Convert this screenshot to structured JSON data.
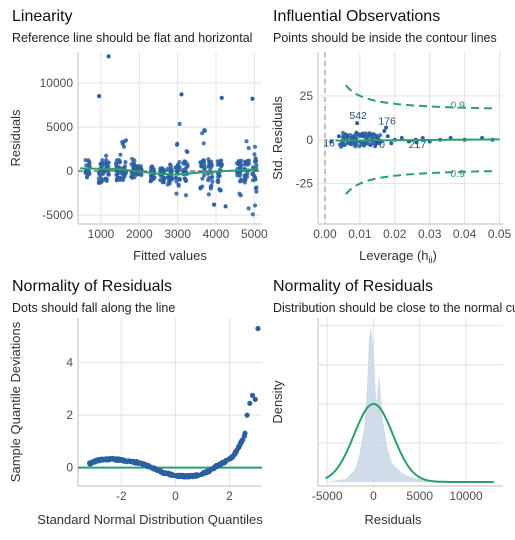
{
  "colors": {
    "points": "#2a5fa0",
    "line": "#2e9e6e",
    "grid": "#e3e3e3",
    "density_fill": "#c9d6e6",
    "ref_dash": "#9a9a9a"
  },
  "panels": [
    {
      "title": "Linearity",
      "subtitle": "Reference line should be flat and horizontal"
    },
    {
      "title": "Influential Observations",
      "subtitle": "Points should be inside the contour lines"
    },
    {
      "title": "Normality of Residuals",
      "subtitle": "Dots should fall along the line"
    },
    {
      "title": "Normality of Residuals",
      "subtitle": "Distribution should be close to the normal curve"
    }
  ],
  "chart_data": [
    {
      "type": "scatter",
      "title": "Linearity",
      "subtitle": "Reference line should be flat and horizontal",
      "xlabel": "Fitted values",
      "ylabel": "Residuals",
      "xlim": [
        400,
        5200
      ],
      "ylim": [
        -6000,
        13500
      ],
      "xticks": [
        1000,
        2000,
        3000,
        4000,
        5000
      ],
      "yticks": [
        -5000,
        0,
        5000,
        10000
      ],
      "grid": true,
      "reference_line": {
        "y": 0,
        "style": "dashed"
      },
      "clusters": [
        {
          "x": 650,
          "ymin": -800,
          "ymax": 1500
        },
        {
          "x": 1000,
          "ymin": -1500,
          "ymax": 4000
        },
        {
          "x": 1150,
          "ymin": -1200,
          "ymax": 2000
        },
        {
          "x": 1450,
          "ymin": -1200,
          "ymax": 3300
        },
        {
          "x": 1600,
          "ymin": -1000,
          "ymax": 3700
        },
        {
          "x": 1850,
          "ymin": -800,
          "ymax": 2500
        },
        {
          "x": 2000,
          "ymin": -600,
          "ymax": 600
        },
        {
          "x": 2350,
          "ymin": -1200,
          "ymax": 600
        },
        {
          "x": 2600,
          "ymin": -2600,
          "ymax": 500
        },
        {
          "x": 2800,
          "ymin": -1600,
          "ymax": 800
        },
        {
          "x": 3000,
          "ymin": -3800,
          "ymax": 5500
        },
        {
          "x": 3200,
          "ymin": -2800,
          "ymax": 3000
        },
        {
          "x": 3650,
          "ymin": -3500,
          "ymax": 4800
        },
        {
          "x": 3850,
          "ymin": -2700,
          "ymax": 2000
        },
        {
          "x": 4100,
          "ymin": -3000,
          "ymax": 2500
        },
        {
          "x": 4600,
          "ymin": -3700,
          "ymax": 3600
        },
        {
          "x": 4800,
          "ymin": -4300,
          "ymax": 3500
        },
        {
          "x": 5000,
          "ymin": -5000,
          "ymax": 3000
        }
      ],
      "outliers": [
        {
          "x": 950,
          "y": 8500
        },
        {
          "x": 1200,
          "y": 13000
        },
        {
          "x": 3100,
          "y": 8700
        },
        {
          "x": 4150,
          "y": 8300
        },
        {
          "x": 4950,
          "y": 8200
        },
        {
          "x": 3950,
          "y": -3800
        },
        {
          "x": 4250,
          "y": -4000
        }
      ],
      "fit_line": [
        [
          450,
          300
        ],
        [
          1500,
          200
        ],
        [
          2500,
          -300
        ],
        [
          3000,
          -400
        ],
        [
          3500,
          -200
        ],
        [
          4200,
          0
        ],
        [
          5100,
          200
        ]
      ]
    },
    {
      "type": "scatter",
      "title": "Influential Observations",
      "subtitle": "Points should be inside the contour lines",
      "xlabel": "Leverage (h",
      "xlabel_sub": "ii",
      "xlabel_close": ")",
      "ylabel": "Std. Residuals",
      "xlim": [
        -0.002,
        0.051
      ],
      "ylim": [
        -48,
        50
      ],
      "xticks": [
        0.0,
        0.01,
        0.02,
        0.03,
        0.04,
        0.05
      ],
      "xticklabels": [
        "0.00",
        "0.01",
        "0.02",
        "0.03",
        "0.04",
        "0.05"
      ],
      "yticks": [
        -25,
        0,
        25
      ],
      "grid": true,
      "vline": {
        "x": 0,
        "style": "dashed"
      },
      "contour_labels": [
        {
          "text": "0.9",
          "x": 0.038,
          "y": 20
        },
        {
          "text": "0.9",
          "x": 0.038,
          "y": -19
        }
      ],
      "point_labels": [
        {
          "text": "542",
          "x": 0.0095,
          "y": 14
        },
        {
          "text": "176",
          "x": 0.0178,
          "y": 11
        },
        {
          "text": "16",
          "x": 0.0012,
          "y": -1.5
        },
        {
          "text": "70",
          "x": 0.0155,
          "y": -2.5
        },
        {
          "text": "217",
          "x": 0.0265,
          "y": -2.5
        }
      ],
      "points": [
        [
          0.004,
          2
        ],
        [
          0.005,
          -1
        ],
        [
          0.006,
          3
        ],
        [
          0.007,
          -2
        ],
        [
          0.008,
          1
        ],
        [
          0.009,
          4
        ],
        [
          0.01,
          -1
        ],
        [
          0.011,
          2
        ],
        [
          0.012,
          0
        ],
        [
          0.013,
          -3
        ],
        [
          0.014,
          3
        ],
        [
          0.015,
          1
        ],
        [
          0.016,
          -1
        ],
        [
          0.017,
          5
        ],
        [
          0.018,
          2
        ],
        [
          0.019,
          -2
        ],
        [
          0.02,
          0
        ],
        [
          0.022,
          1
        ],
        [
          0.024,
          -1
        ],
        [
          0.026,
          0
        ],
        [
          0.028,
          1
        ],
        [
          0.03,
          -1
        ],
        [
          0.033,
          0
        ],
        [
          0.036,
          1
        ],
        [
          0.04,
          0
        ],
        [
          0.045,
          1
        ],
        [
          0.048,
          0
        ],
        [
          0.0092,
          9.5
        ],
        [
          0.0175,
          7
        ],
        [
          0.0018,
          -1
        ],
        [
          0.0148,
          -1.5
        ],
        [
          0.0262,
          -1.5
        ]
      ],
      "fit_line": [
        [
          0.003,
          -0.5
        ],
        [
          0.02,
          -0.3
        ],
        [
          0.05,
          0.2
        ]
      ]
    },
    {
      "type": "scatter",
      "title": "Normality of Residuals",
      "subtitle": "Dots should fall along the line",
      "xlabel": "Standard Normal Distribution Quantiles",
      "ylabel": "Sample Quantile Deviations",
      "xlim": [
        -3.6,
        3.2
      ],
      "ylim": [
        -0.7,
        5.7
      ],
      "xticks": [
        -2,
        0,
        2
      ],
      "yticks": [
        0,
        2,
        4
      ],
      "grid": true,
      "reference_line": {
        "y": 0
      },
      "curve": [
        [
          -3.2,
          0.15
        ],
        [
          -2.8,
          0.3
        ],
        [
          -2.3,
          0.33
        ],
        [
          -1.8,
          0.25
        ],
        [
          -1.3,
          0.18
        ],
        [
          -0.9,
          0.02
        ],
        [
          -0.5,
          -0.18
        ],
        [
          0.0,
          -0.3
        ],
        [
          0.4,
          -0.33
        ],
        [
          0.8,
          -0.3
        ],
        [
          1.2,
          -0.15
        ],
        [
          1.5,
          0.05
        ],
        [
          1.8,
          0.2
        ],
        [
          2.1,
          0.4
        ],
        [
          2.3,
          0.7
        ],
        [
          2.45,
          1.0
        ],
        [
          2.6,
          1.35
        ]
      ],
      "extreme_points": [
        [
          2.65,
          2.0
        ],
        [
          2.75,
          2.45
        ],
        [
          2.85,
          2.75
        ],
        [
          2.95,
          2.6
        ],
        [
          3.05,
          5.3
        ]
      ]
    },
    {
      "type": "area",
      "title": "Normality of Residuals",
      "subtitle": "Distribution should be close to the normal curve",
      "xlabel": "Residuals",
      "ylabel": "Density",
      "xlim": [
        -6000,
        14000
      ],
      "xticks": [
        -5000,
        0,
        5000,
        10000
      ],
      "xticklabels": [
        "-5000",
        "0",
        "5000",
        "10000"
      ],
      "grid": true,
      "empirical_density": [
        [
          -5000,
          0
        ],
        [
          -3000,
          0.02
        ],
        [
          -2000,
          0.08
        ],
        [
          -1500,
          0.18
        ],
        [
          -1000,
          0.35
        ],
        [
          -700,
          0.6
        ],
        [
          -500,
          0.9
        ],
        [
          -300,
          1.0
        ],
        [
          0,
          0.85
        ],
        [
          300,
          0.5
        ],
        [
          600,
          0.7
        ],
        [
          1000,
          0.4
        ],
        [
          1500,
          0.22
        ],
        [
          2000,
          0.12
        ],
        [
          3000,
          0.06
        ],
        [
          4000,
          0.03
        ],
        [
          6000,
          0.01
        ],
        [
          9000,
          0.005
        ],
        [
          13000,
          0
        ]
      ],
      "normal_curve": {
        "mean": 0,
        "sd": 2100,
        "peak_relative": 0.5
      }
    }
  ]
}
